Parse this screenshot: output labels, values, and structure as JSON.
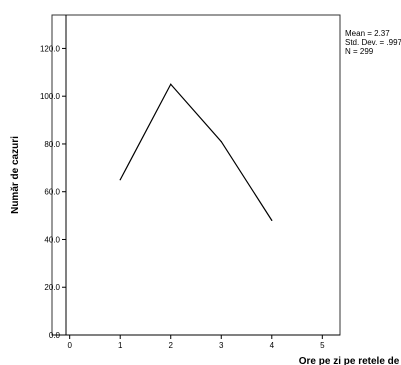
{
  "chart_data": {
    "type": "line",
    "xlabel": "Ore pe zi pe retele de socializare",
    "ylabel": "Număr de cazuri",
    "x_ticks": [
      "0",
      "1",
      "2",
      "3",
      "4",
      "5"
    ],
    "y_ticks": [
      "0.0",
      "20.0",
      "40.0",
      "60.0",
      "80.0",
      "100.0",
      "120.0"
    ],
    "xlim": [
      -0.35,
      5.35
    ],
    "ylim": [
      0,
      134
    ],
    "grid": false,
    "series": [
      {
        "x": [
          1,
          2,
          3,
          4
        ],
        "values": [
          65,
          105,
          81,
          48
        ],
        "color": "#000000"
      }
    ],
    "stats": {
      "mean": "Mean = 2.37",
      "std_dev": "Std. Dev. = .997",
      "n": "N = 299"
    }
  }
}
